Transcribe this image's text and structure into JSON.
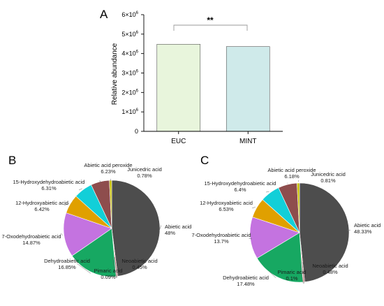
{
  "chart_data": [
    {
      "type": "bar",
      "panel": "A",
      "categories": [
        "EUC",
        "MINT"
      ],
      "values": [
        4480000,
        4360000
      ],
      "colors": [
        "#e8f5dc",
        "#cfeaea"
      ],
      "ylabel": "Relative abundance",
      "ylim": [
        0,
        6000000
      ],
      "yticks": [
        {
          "value": 0,
          "base": "0",
          "exp": ""
        },
        {
          "value": 1000000,
          "base": "1×10",
          "exp": "6"
        },
        {
          "value": 2000000,
          "base": "2×10",
          "exp": "6"
        },
        {
          "value": 3000000,
          "base": "3×10",
          "exp": "6"
        },
        {
          "value": 4000000,
          "base": "4×10",
          "exp": "6"
        },
        {
          "value": 5000000,
          "base": "5×10",
          "exp": "6"
        },
        {
          "value": 6000000,
          "base": "6×10",
          "exp": "6"
        }
      ],
      "significance": "**"
    },
    {
      "type": "pie",
      "panel": "B",
      "slices": [
        {
          "name": "Abietic acid",
          "pct": "48%",
          "value": 48,
          "color": "#4d4d4d"
        },
        {
          "name": "Neoabietic acid",
          "pct": "0.45%",
          "value": 0.45,
          "color": "#e07a7a"
        },
        {
          "name": "Pimaric acid",
          "pct": "0.09%",
          "value": 0.09,
          "color": "#c0c0c0"
        },
        {
          "name": "Dehydroabietic acid",
          "pct": "16.85%",
          "value": 16.85,
          "color": "#17a862"
        },
        {
          "name": "7-Oxodehydroabietic acid",
          "pct": "14.87%",
          "value": 14.87,
          "color": "#c473e0"
        },
        {
          "name": "12-Hydroxyabietic acid",
          "pct": "6.42%",
          "value": 6.42,
          "color": "#e0a000"
        },
        {
          "name": "15-Hydroxydehydroabietic acid",
          "pct": "6.31%",
          "value": 6.31,
          "color": "#12cfd8"
        },
        {
          "name": "Abietic acid peroxide",
          "pct": "6.23%",
          "value": 6.23,
          "color": "#8e4d4d"
        },
        {
          "name": "Junicedric acid",
          "pct": "0.78%",
          "value": 0.78,
          "color": "#c8c000"
        }
      ]
    },
    {
      "type": "pie",
      "panel": "C",
      "slices": [
        {
          "name": "Abietic acid",
          "pct": "48.33%",
          "value": 48.33,
          "color": "#4d4d4d"
        },
        {
          "name": "Neoabietic acid",
          "pct": "0.48%",
          "value": 0.48,
          "color": "#e07a7a"
        },
        {
          "name": "Pimaric acid",
          "pct": "0.1%",
          "value": 0.1,
          "color": "#c0c0c0"
        },
        {
          "name": "Dehydroabietic acid",
          "pct": "17.48%",
          "value": 17.48,
          "color": "#17a862"
        },
        {
          "name": "7-Oxodehydroabietic acid",
          "pct": "13.7%",
          "value": 13.7,
          "color": "#c473e0"
        },
        {
          "name": "12-Hydroxyabietic acid",
          "pct": "6.53%",
          "value": 6.53,
          "color": "#e0a000"
        },
        {
          "name": "15-Hydroxydehydroabietic acid",
          "pct": "6.4%",
          "value": 6.4,
          "color": "#12cfd8"
        },
        {
          "name": "Abietic acid peroxide",
          "pct": "6.18%",
          "value": 6.18,
          "color": "#8e4d4d"
        },
        {
          "name": "Junicedric acid",
          "pct": "0.81%",
          "value": 0.81,
          "color": "#c8c000"
        }
      ]
    }
  ]
}
